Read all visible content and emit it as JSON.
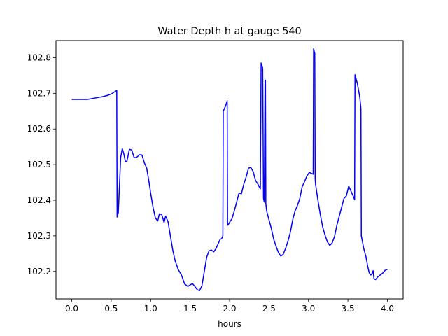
{
  "chart_data": {
    "type": "line",
    "title": "Water Depth h at gauge 540",
    "xlabel": "hours",
    "ylabel": "",
    "xlim": [
      -0.2,
      4.2
    ],
    "ylim": [
      102.123,
      102.848
    ],
    "xticks": [
      0.0,
      0.5,
      1.0,
      1.5,
      2.0,
      2.5,
      3.0,
      3.5,
      4.0
    ],
    "xtick_labels": [
      "0.0",
      "0.5",
      "1.0",
      "1.5",
      "2.0",
      "2.5",
      "3.0",
      "3.5",
      "4.0"
    ],
    "yticks": [
      102.2,
      102.3,
      102.4,
      102.5,
      102.6,
      102.7,
      102.8
    ],
    "ytick_labels": [
      "102.2",
      "102.3",
      "102.4",
      "102.5",
      "102.6",
      "102.7",
      "102.8"
    ],
    "grid": false,
    "legend": false,
    "series": [
      {
        "color": "#0000ff",
        "x": [
          0.0,
          0.2,
          0.3,
          0.4,
          0.45,
          0.5,
          0.55,
          0.57,
          0.575,
          0.59,
          0.62,
          0.64,
          0.66,
          0.68,
          0.7,
          0.73,
          0.76,
          0.79,
          0.82,
          0.86,
          0.89,
          0.92,
          0.95,
          0.98,
          1.0,
          1.03,
          1.06,
          1.09,
          1.11,
          1.14,
          1.17,
          1.19,
          1.22,
          1.25,
          1.28,
          1.31,
          1.35,
          1.39,
          1.43,
          1.47,
          1.5,
          1.53,
          1.56,
          1.59,
          1.62,
          1.65,
          1.68,
          1.71,
          1.74,
          1.77,
          1.8,
          1.83,
          1.86,
          1.88,
          1.9,
          1.915,
          1.92,
          1.95,
          1.97,
          1.975,
          1.98,
          2.0,
          2.03,
          2.06,
          2.09,
          2.12,
          2.15,
          2.18,
          2.21,
          2.24,
          2.27,
          2.3,
          2.33,
          2.36,
          2.39,
          2.4,
          2.405,
          2.42,
          2.43,
          2.44,
          2.45,
          2.455,
          2.46,
          2.47,
          2.5,
          2.53,
          2.56,
          2.59,
          2.62,
          2.65,
          2.68,
          2.71,
          2.74,
          2.77,
          2.8,
          2.83,
          2.86,
          2.89,
          2.92,
          2.95,
          2.98,
          3.01,
          3.04,
          3.06,
          3.065,
          3.07,
          3.08,
          3.085,
          3.09,
          3.12,
          3.15,
          3.18,
          3.21,
          3.24,
          3.27,
          3.3,
          3.33,
          3.36,
          3.39,
          3.42,
          3.45,
          3.48,
          3.51,
          3.54,
          3.57,
          3.585,
          3.59,
          3.62,
          3.65,
          3.665,
          3.67,
          3.7,
          3.73,
          3.75,
          3.77,
          3.79,
          3.81,
          3.82,
          3.83,
          3.85,
          3.88,
          3.91,
          3.94,
          3.97,
          4.0
        ],
        "y": [
          102.683,
          102.683,
          102.687,
          102.691,
          102.694,
          102.698,
          102.705,
          102.708,
          102.353,
          102.365,
          102.52,
          102.545,
          102.53,
          102.508,
          102.51,
          102.543,
          102.541,
          102.52,
          102.52,
          102.528,
          102.527,
          102.505,
          102.49,
          102.45,
          102.42,
          102.38,
          102.35,
          102.342,
          102.362,
          102.36,
          102.338,
          102.355,
          102.34,
          102.3,
          102.26,
          102.23,
          102.205,
          102.19,
          102.165,
          102.158,
          102.162,
          102.166,
          102.158,
          102.149,
          102.146,
          102.16,
          102.2,
          102.24,
          102.258,
          102.26,
          102.255,
          102.265,
          102.28,
          102.29,
          102.292,
          102.3,
          102.65,
          102.665,
          102.679,
          102.33,
          102.33,
          102.338,
          102.348,
          102.37,
          102.395,
          102.42,
          102.418,
          102.445,
          102.465,
          102.49,
          102.492,
          102.48,
          102.455,
          102.445,
          102.432,
          102.785,
          102.783,
          102.77,
          102.405,
          102.395,
          102.737,
          102.737,
          102.39,
          102.37,
          102.345,
          102.32,
          102.29,
          102.27,
          102.253,
          102.243,
          102.248,
          102.265,
          102.285,
          102.31,
          102.345,
          102.37,
          102.385,
          102.405,
          102.438,
          102.452,
          102.468,
          102.478,
          102.475,
          102.473,
          102.825,
          102.82,
          102.812,
          102.46,
          102.445,
          102.4,
          102.36,
          102.325,
          102.302,
          102.283,
          102.273,
          102.28,
          102.298,
          102.33,
          102.355,
          102.38,
          102.405,
          102.412,
          102.44,
          102.425,
          102.41,
          102.402,
          102.752,
          102.727,
          102.69,
          102.657,
          102.3,
          102.265,
          102.24,
          102.215,
          102.196,
          102.19,
          102.195,
          102.202,
          102.18,
          102.177,
          102.185,
          102.19,
          102.195,
          102.203,
          102.206
        ]
      }
    ]
  }
}
